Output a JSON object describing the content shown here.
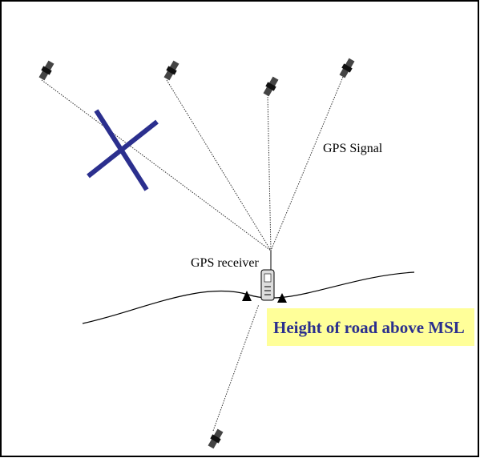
{
  "labels": {
    "signal": "GPS Signal",
    "receiver": "GPS receiver",
    "height": "Height of road above MSL"
  }
}
